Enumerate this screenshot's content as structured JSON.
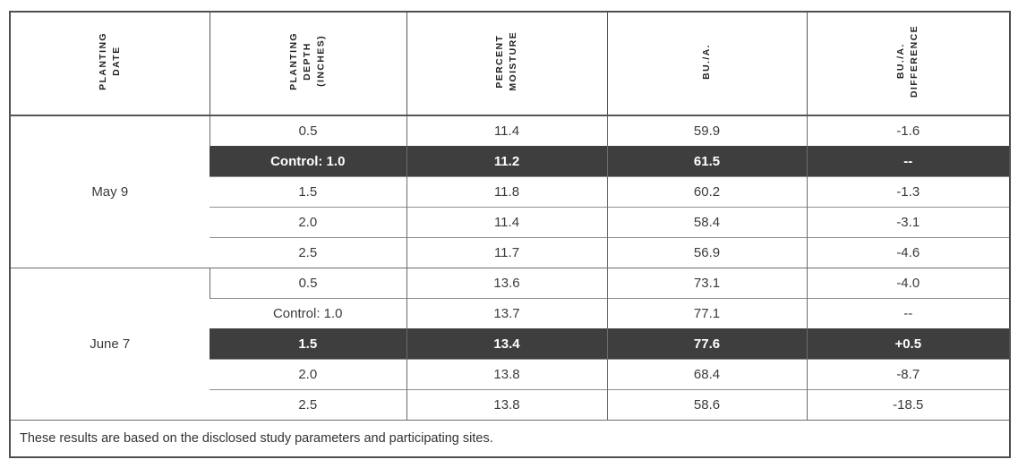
{
  "table": {
    "headers": [
      {
        "label": "PLANTING\nDATE"
      },
      {
        "label": "PLANTING\nDEPTH\n(INCHES)"
      },
      {
        "label": "PERCENT\nMOISTURE"
      },
      {
        "label": "BU./A."
      },
      {
        "label": "BU./A.\nDIFFERENCE"
      }
    ],
    "groups": [
      {
        "date": "May 9",
        "rows": [
          {
            "depth": "0.5",
            "moisture": "11.4",
            "bua": "59.9",
            "diff": "-1.6"
          },
          {
            "depth": "Control: 1.0",
            "moisture": "11.2",
            "bua": "61.5",
            "diff": "--",
            "highlighted": true
          },
          {
            "depth": "1.5",
            "moisture": "11.8",
            "bua": "60.2",
            "diff": "-1.3"
          },
          {
            "depth": "2.0",
            "moisture": "11.4",
            "bua": "58.4",
            "diff": "-3.1"
          },
          {
            "depth": "2.5",
            "moisture": "11.7",
            "bua": "56.9",
            "diff": "-4.6"
          }
        ]
      },
      {
        "date": "June 7",
        "rows": [
          {
            "depth": "0.5",
            "moisture": "13.6",
            "bua": "73.1",
            "diff": "-4.0"
          },
          {
            "depth": "Control: 1.0",
            "moisture": "13.7",
            "bua": "77.1",
            "diff": "--"
          },
          {
            "depth": "1.5",
            "moisture": "13.4",
            "bua": "77.6",
            "diff": "+0.5",
            "highlighted": true
          },
          {
            "depth": "2.0",
            "moisture": "13.8",
            "bua": "68.4",
            "diff": "-8.7"
          },
          {
            "depth": "2.5",
            "moisture": "13.8",
            "bua": "58.6",
            "diff": "-18.5"
          }
        ]
      }
    ],
    "footer_note": "These results are based on the disclosed study parameters and participating sites.",
    "colors": {
      "highlight_background": "#3e3e3e",
      "highlight_text": "#ffffff",
      "outer_border": "#4f4f4f"
    }
  }
}
